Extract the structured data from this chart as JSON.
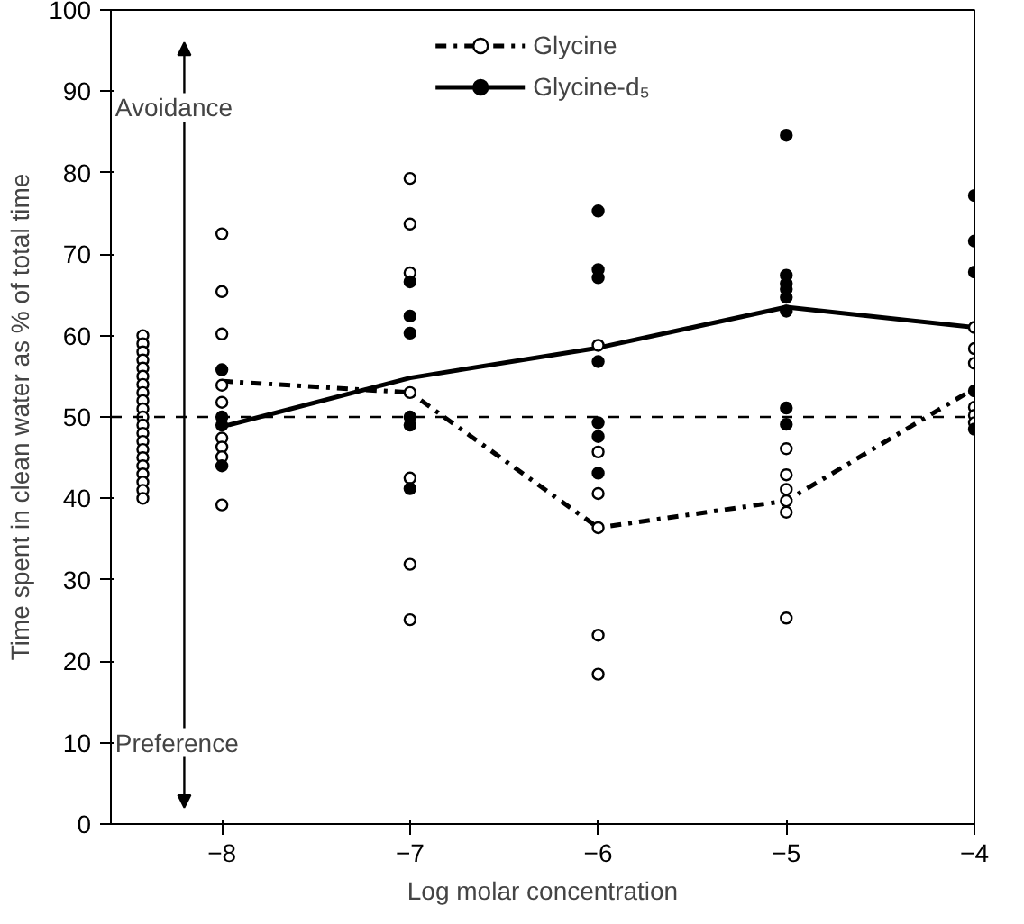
{
  "chart_data": {
    "type": "scatter",
    "xlabel": "Log molar concentration",
    "ylabel": "Time spent in clean water as % of total time",
    "xlim": [
      -8.59,
      -4
    ],
    "xticks": [
      -8,
      -7,
      -6,
      -5,
      -4
    ],
    "ylim": [
      0,
      100
    ],
    "yticks": [
      0,
      10,
      20,
      30,
      40,
      50,
      60,
      70,
      80,
      90,
      100
    ],
    "grid": false,
    "legend": "top",
    "marker": "circle",
    "annotations": [
      "Avoidance",
      "Preference"
    ],
    "ref_lines": [
      {
        "axis": "y",
        "value": 50,
        "label": null,
        "color": "#000000",
        "line_style": "dashed"
      }
    ],
    "series": [
      {
        "name": "Glycine",
        "type": "line",
        "marker": "none",
        "color": "#000000",
        "line_style": "dashdot",
        "x": [
          -8,
          -7,
          -6,
          -5,
          -4
        ],
        "values": [
          54.4,
          53,
          36.4,
          39.7,
          53.5
        ]
      },
      {
        "name": "Glycine-d₅",
        "type": "line",
        "marker": "none",
        "color": "#000000",
        "line_style": "solid",
        "x": [
          -8,
          -7,
          -6,
          -5,
          -4
        ],
        "values": [
          48.8,
          54.8,
          58.5,
          63.5,
          61
        ]
      },
      {
        "color": "#000000",
        "colors": [
          "#ffffff",
          "#ffffff",
          "#ffffff",
          "#ffffff",
          "#ffffff",
          "#ffffff",
          "#ffffff",
          "#ffffff",
          "#ffffff",
          "#ffffff",
          "#ffffff",
          "#ffffff",
          "#ffffff",
          "#ffffff",
          "#ffffff",
          "#ffffff",
          "#ffffff",
          "#ffffff",
          "#ffffff",
          "#ffffff",
          "#ffffff"
        ],
        "x": [
          -8.42,
          -8.42,
          -8.42,
          -8.42,
          -8.42,
          -8.42,
          -8.42,
          -8.42,
          -8.42,
          -8.42,
          -8.42,
          -8.42,
          -8.42,
          -8.42,
          -8.42,
          -8.42,
          -8.42,
          -8.42,
          -8.42,
          -8.42,
          -8.42
        ],
        "values": [
          60,
          59,
          58,
          57,
          56,
          55,
          54,
          53,
          52,
          51,
          50,
          49,
          48,
          47,
          46,
          45,
          44,
          43,
          42,
          41,
          40
        ]
      },
      {
        "color": "#000000",
        "colors": [
          "#ffffff",
          "#ffffff",
          "#ffffff",
          "#ffffff",
          "#ffffff",
          "#ffffff",
          "#ffffff",
          "#ffffff",
          "#ffffff",
          "#ffffff",
          "#ffffff",
          "#ffffff",
          "#ffffff",
          "#ffffff",
          "#ffffff",
          "#ffffff",
          "#ffffff",
          "#ffffff",
          "#ffffff",
          "#ffffff",
          "#ffffff",
          "#ffffff",
          "#ffffff",
          "#ffffff",
          "#ffffff",
          "#ffffff",
          "#ffffff",
          "#ffffff",
          "#ffffff",
          "#ffffff",
          "#ffffff",
          "#ffffff",
          "#ffffff",
          "#ffffff"
        ],
        "x": [
          -8,
          -8,
          -8,
          -8,
          -8,
          -8,
          -8,
          -8,
          -8,
          -7,
          -7,
          -7,
          -7,
          -7,
          -7,
          -7,
          -6,
          -6,
          -6,
          -6,
          -6,
          -6,
          -5,
          -5,
          -5,
          -5,
          -5,
          -5,
          -4,
          -4,
          -4,
          -4,
          -4,
          -4
        ],
        "values": [
          72.5,
          65.4,
          60.2,
          53.9,
          51.8,
          47.4,
          46.3,
          45.1,
          39.2,
          79.3,
          73.7,
          67.7,
          53,
          42.5,
          31.9,
          25.1,
          58.8,
          45.7,
          40.6,
          36.4,
          23.2,
          18.4,
          46.1,
          42.9,
          41.1,
          39.7,
          38.3,
          25.3,
          61,
          58.4,
          56.6,
          51.2,
          50.2,
          49.3
        ]
      },
      {
        "color": "#000000",
        "x": [
          -8,
          -8,
          -8,
          -8,
          -7,
          -7,
          -7,
          -7,
          -7,
          -7,
          -6,
          -6,
          -6,
          -6,
          -6,
          -6,
          -6,
          -5,
          -5,
          -5,
          -5,
          -5,
          -5,
          -5,
          -5,
          -4,
          -4,
          -4,
          -4,
          -4
        ],
        "values": [
          55.8,
          50,
          49,
          44,
          66.6,
          62.4,
          60.3,
          50,
          49,
          41.2,
          75.3,
          68.1,
          67.1,
          56.8,
          49.3,
          47.6,
          43.1,
          84.6,
          67.4,
          66.4,
          65.7,
          64.7,
          63,
          51.1,
          49.1,
          77.2,
          71.6,
          67.8,
          53.2,
          48.5
        ]
      }
    ]
  }
}
